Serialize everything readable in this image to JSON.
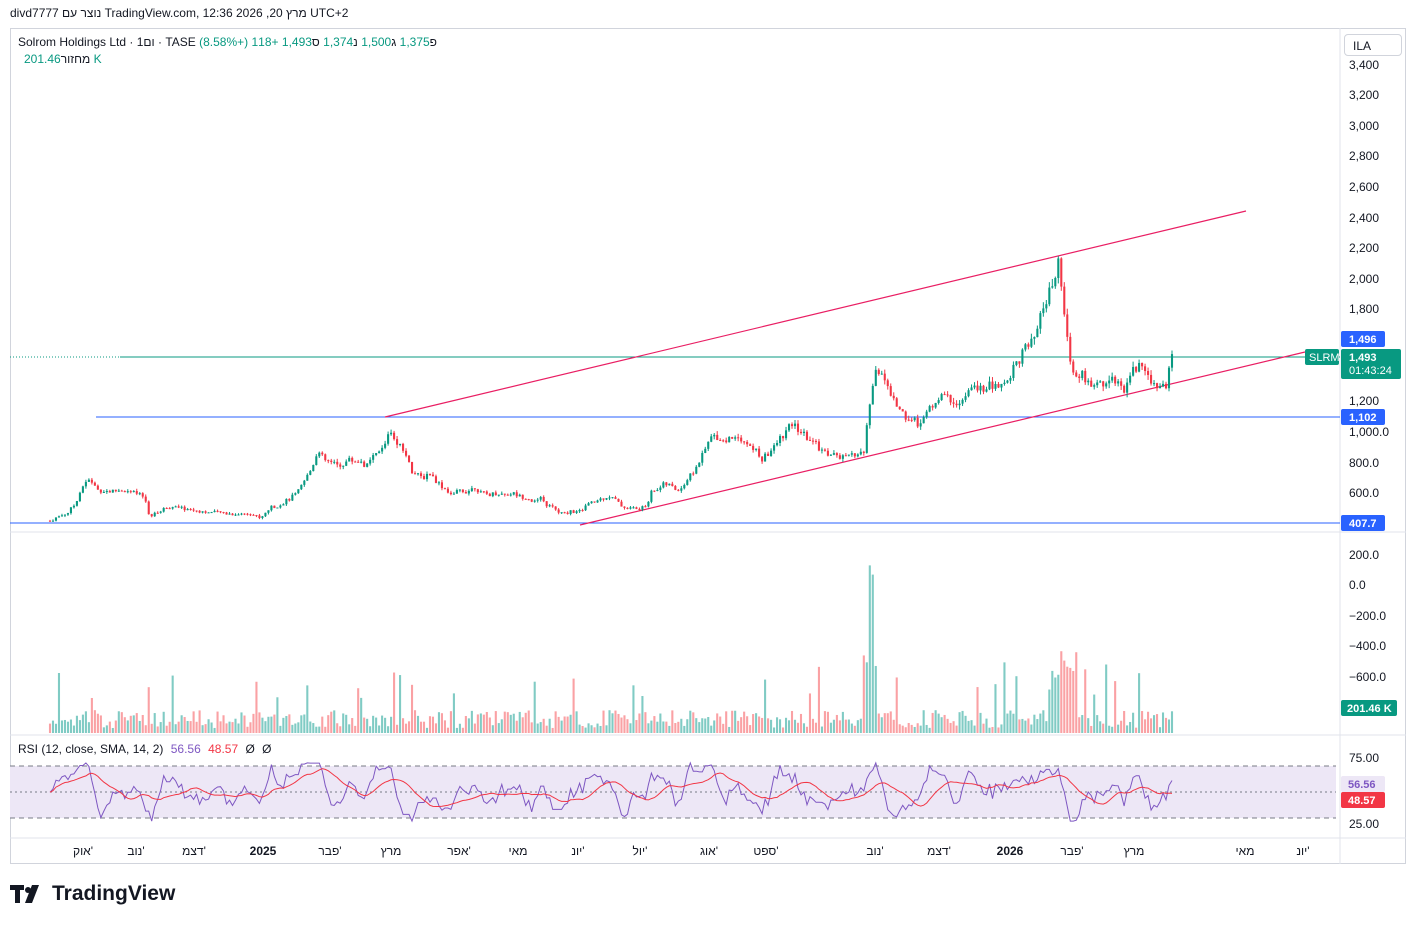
{
  "header": {
    "created_by": "divd7777 נוצר עם TradingView.com, 12:36 2026 ,20 מרץ UTC+2"
  },
  "legend": {
    "symbol_name": "Solrom Holdings Ltd · 1ום · TASE",
    "o_label": "פ",
    "o_value": "1,375",
    "h_label": "ג",
    "h_value": "1,500",
    "l_label": "נ",
    "l_value": "1,374",
    "c_label": "ס",
    "c_value": "1,493",
    "change": "+118 (+8.58%)",
    "volume_label": "מחזור",
    "volume_value": "201.46 K"
  },
  "rsi_legend": {
    "label": "RSI (12, close, SMA, 14, 2)",
    "rsi_value": "56.56",
    "sma_value": "48.57",
    "extra1": "Ø",
    "extra2": "Ø"
  },
  "currency_button": "ILA",
  "brand": "TradingView",
  "colors": {
    "up": "#089981",
    "down": "#f23645",
    "channel": "#e91e63",
    "hline": "#2962ff",
    "rsi": "#7e57c2",
    "rsi_ma": "#f23645",
    "rsi_band": "#ede7f6",
    "price_tag": "#089981",
    "hline_tag": "#2962ff"
  },
  "tags": {
    "high_tag": "1,496",
    "symbol_tag": "SLRM",
    "last_price": "1,493",
    "countdown": "01:43:24",
    "hline_1102": "1,102",
    "hline_407": "407.7",
    "volume_tag": "201.46 K",
    "rsi_tag": "56.56",
    "rsi_ma_tag": "48.57"
  },
  "chart_data": {
    "type": "candlestick",
    "price_axis_ticks": [
      "3,400",
      "3,200",
      "3,000",
      "2,800",
      "2,600",
      "2,400",
      "2,200",
      "2,000",
      "1,800",
      "1,200",
      "1,000.0",
      "800.0",
      "600.0"
    ],
    "volume_axis_ticks": [
      "200.0",
      "0.0",
      "−200.0",
      "−400.0",
      "−600.0"
    ],
    "rsi_axis_ticks": [
      "75.00",
      "25.00"
    ],
    "time_axis_labels": [
      "אוק'",
      "נוב'",
      "דצמ'",
      "2025",
      "פבר'",
      "מרץ",
      "אפר'",
      "מאי",
      "יונ'",
      "יול'",
      "אוג'",
      "ספט'",
      "נוב'",
      "דצמ'",
      "2026",
      "פבר'",
      "מרץ",
      "מאי",
      "יונ'"
    ],
    "horizontal_levels": [
      1496,
      1102,
      407.7
    ],
    "price_path": [
      [
        0,
        415
      ],
      [
        8,
        440
      ],
      [
        18,
        470
      ],
      [
        25,
        525
      ],
      [
        32,
        640
      ],
      [
        40,
        690
      ],
      [
        48,
        620
      ],
      [
        60,
        610
      ],
      [
        72,
        620
      ],
      [
        85,
        600
      ],
      [
        95,
        570
      ],
      [
        100,
        440
      ],
      [
        108,
        470
      ],
      [
        118,
        510
      ],
      [
        130,
        500
      ],
      [
        140,
        490
      ],
      [
        150,
        480
      ],
      [
        160,
        470
      ],
      [
        172,
        470
      ],
      [
        182,
        460
      ],
      [
        192,
        460
      ],
      [
        200,
        470
      ],
      [
        205,
        450
      ],
      [
        212,
        430
      ],
      [
        220,
        500
      ],
      [
        230,
        520
      ],
      [
        240,
        560
      ],
      [
        248,
        600
      ],
      [
        255,
        680
      ],
      [
        262,
        760
      ],
      [
        268,
        880
      ],
      [
        275,
        820
      ],
      [
        282,
        800
      ],
      [
        290,
        780
      ],
      [
        300,
        820
      ],
      [
        310,
        810
      ],
      [
        318,
        780
      ],
      [
        322,
        820
      ],
      [
        328,
        860
      ],
      [
        335,
        900
      ],
      [
        340,
        1020
      ],
      [
        346,
        960
      ],
      [
        352,
        900
      ],
      [
        358,
        860
      ],
      [
        362,
        750
      ],
      [
        368,
        720
      ],
      [
        374,
        700
      ],
      [
        380,
        740
      ],
      [
        386,
        690
      ],
      [
        392,
        650
      ],
      [
        398,
        620
      ],
      [
        404,
        580
      ],
      [
        410,
        620
      ],
      [
        418,
        610
      ],
      [
        426,
        640
      ],
      [
        432,
        600
      ],
      [
        440,
        590
      ],
      [
        448,
        600
      ],
      [
        456,
        590
      ],
      [
        464,
        600
      ],
      [
        470,
        580
      ],
      [
        478,
        570
      ],
      [
        486,
        540
      ],
      [
        492,
        560
      ],
      [
        498,
        520
      ],
      [
        505,
        500
      ],
      [
        510,
        470
      ],
      [
        516,
        460
      ],
      [
        522,
        480
      ],
      [
        530,
        470
      ],
      [
        538,
        520
      ],
      [
        546,
        540
      ],
      [
        552,
        560
      ],
      [
        560,
        580
      ],
      [
        566,
        560
      ],
      [
        572,
        520
      ],
      [
        578,
        500
      ],
      [
        585,
        500
      ],
      [
        592,
        490
      ],
      [
        598,
        520
      ],
      [
        604,
        620
      ],
      [
        610,
        630
      ],
      [
        616,
        660
      ],
      [
        622,
        650
      ],
      [
        628,
        620
      ],
      [
        634,
        640
      ],
      [
        640,
        700
      ],
      [
        646,
        750
      ],
      [
        652,
        820
      ],
      [
        658,
        900
      ],
      [
        664,
        980
      ],
      [
        670,
        970
      ],
      [
        676,
        940
      ],
      [
        682,
        960
      ],
      [
        690,
        980
      ],
      [
        696,
        940
      ],
      [
        702,
        900
      ],
      [
        708,
        880
      ],
      [
        714,
        820
      ],
      [
        720,
        860
      ],
      [
        726,
        900
      ],
      [
        732,
        960
      ],
      [
        738,
        1000
      ],
      [
        744,
        1050
      ],
      [
        750,
        1020
      ],
      [
        756,
        980
      ],
      [
        762,
        950
      ],
      [
        768,
        920
      ],
      [
        774,
        880
      ],
      [
        780,
        860
      ],
      [
        786,
        850
      ],
      [
        792,
        840
      ],
      [
        798,
        830
      ],
      [
        804,
        850
      ],
      [
        810,
        860
      ],
      [
        816,
        870
      ],
      [
        822,
        1180
      ],
      [
        828,
        1420
      ],
      [
        834,
        1380
      ],
      [
        840,
        1280
      ],
      [
        846,
        1200
      ],
      [
        852,
        1150
      ],
      [
        858,
        1100
      ],
      [
        864,
        1080
      ],
      [
        870,
        1060
      ],
      [
        876,
        1090
      ],
      [
        882,
        1150
      ],
      [
        888,
        1200
      ],
      [
        894,
        1230
      ],
      [
        900,
        1220
      ],
      [
        906,
        1200
      ],
      [
        912,
        1180
      ],
      [
        918,
        1230
      ],
      [
        924,
        1270
      ],
      [
        930,
        1300
      ],
      [
        936,
        1260
      ],
      [
        942,
        1300
      ],
      [
        948,
        1290
      ],
      [
        954,
        1310
      ],
      [
        960,
        1330
      ],
      [
        966,
        1420
      ],
      [
        972,
        1480
      ],
      [
        978,
        1540
      ],
      [
        984,
        1570
      ],
      [
        990,
        1640
      ],
      [
        996,
        1820
      ],
      [
        1002,
        1900
      ],
      [
        1006,
        1950
      ],
      [
        1010,
        2160
      ],
      [
        1014,
        1940
      ],
      [
        1018,
        1700
      ],
      [
        1022,
        1480
      ],
      [
        1026,
        1400
      ],
      [
        1030,
        1380
      ],
      [
        1036,
        1360
      ],
      [
        1042,
        1300
      ],
      [
        1048,
        1280
      ],
      [
        1054,
        1320
      ],
      [
        1060,
        1330
      ],
      [
        1066,
        1360
      ],
      [
        1072,
        1300
      ],
      [
        1078,
        1280
      ],
      [
        1084,
        1400
      ],
      [
        1090,
        1420
      ],
      [
        1096,
        1420
      ],
      [
        1102,
        1360
      ],
      [
        1108,
        1300
      ],
      [
        1114,
        1290
      ],
      [
        1120,
        1320
      ],
      [
        1125,
        1493
      ]
    ],
    "n_bars": 1126,
    "channel": {
      "upper": [
        [
          342,
          1102
        ],
        [
          1010,
          2170
        ],
        [
          1200,
          2450
        ]
      ],
      "lower": [
        [
          530,
          400
        ],
        [
          1126,
          1300
        ],
        [
          1260,
          1500
        ]
      ]
    }
  }
}
